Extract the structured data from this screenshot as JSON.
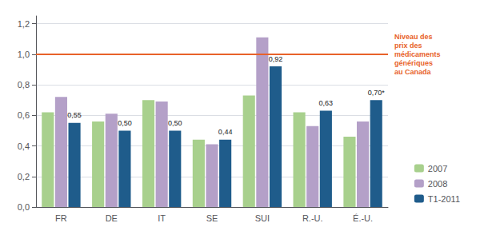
{
  "chart_data": {
    "type": "bar",
    "categories": [
      "FR",
      "DE",
      "IT",
      "SE",
      "SUI",
      "R.-U.",
      "É.-U."
    ],
    "series": [
      {
        "name": "2007",
        "color": "#a8d08d",
        "values": [
          0.62,
          0.56,
          0.7,
          0.44,
          0.73,
          0.62,
          0.46
        ]
      },
      {
        "name": "2008",
        "color": "#b4a0c8",
        "values": [
          0.72,
          0.61,
          0.69,
          0.41,
          1.11,
          0.53,
          0.56
        ]
      },
      {
        "name": "T1-2011",
        "color": "#1f5c8b",
        "values": [
          0.55,
          0.5,
          0.5,
          0.44,
          0.92,
          0.63,
          0.7
        ],
        "value_labels": [
          "0,55",
          "0,50",
          "0,50",
          "0,44",
          "0,92",
          "0,63",
          "0,70*"
        ],
        "data_labels": true
      }
    ],
    "ylim": [
      0,
      1.25
    ],
    "yticks": [
      {
        "value": 0.0,
        "label": "0,0"
      },
      {
        "value": 0.2,
        "label": "0,2"
      },
      {
        "value": 0.4,
        "label": "0,4"
      },
      {
        "value": 0.6,
        "label": "0,6"
      },
      {
        "value": 0.8,
        "label": "0,8"
      },
      {
        "value": 1.0,
        "label": "1,0"
      },
      {
        "value": 1.2,
        "label": "1,2"
      }
    ],
    "grid": true,
    "legend": "lower right",
    "annotations": [
      {
        "text": "Niveau des\nprix des\nmédicaments\ngénériques\nau Canada",
        "y": 1.0,
        "color": "#e8622a"
      }
    ]
  }
}
